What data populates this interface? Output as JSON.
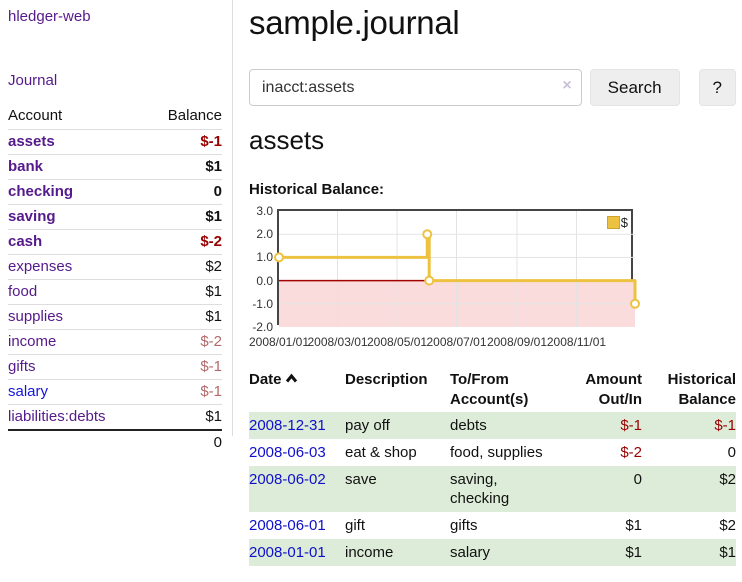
{
  "sidebar": {
    "app_title": "hledger-web",
    "journal_link": "Journal",
    "accounts": {
      "header_account": "Account",
      "header_balance": "Balance",
      "rows": [
        {
          "name": "assets",
          "balance": "$-1"
        },
        {
          "name": "bank",
          "balance": "$1"
        },
        {
          "name": "checking",
          "balance": "0"
        },
        {
          "name": "saving",
          "balance": "$1"
        },
        {
          "name": "cash",
          "balance": "$-2"
        },
        {
          "name": "expenses",
          "balance": "$2"
        },
        {
          "name": "food",
          "balance": "$1"
        },
        {
          "name": "supplies",
          "balance": "$1"
        },
        {
          "name": "income",
          "balance": "$-2"
        },
        {
          "name": "gifts",
          "balance": "$-1"
        },
        {
          "name": "salary",
          "balance": "$-1"
        },
        {
          "name": "liabilities:debts",
          "balance": "$1"
        }
      ],
      "total": "0"
    }
  },
  "main": {
    "title": "sample.journal",
    "search": {
      "value": "inacct:assets",
      "clear": "×",
      "button": "Search",
      "help": "?"
    },
    "heading": "assets",
    "chart_label": "Historical Balance:"
  },
  "chart_data": {
    "type": "line",
    "title": "Historical Balance",
    "step": true,
    "series": [
      {
        "name": "$",
        "color": "#edc240",
        "points": [
          {
            "x": "2008-01-01",
            "y": 1
          },
          {
            "x": "2008-06-01",
            "y": 2
          },
          {
            "x": "2008-06-03",
            "y": 0
          },
          {
            "x": "2008-12-31",
            "y": -1
          }
        ]
      }
    ],
    "ylim": [
      -2,
      3
    ],
    "yticks": [
      3,
      2,
      1,
      0,
      -1,
      -2
    ],
    "xticks": [
      {
        "date": "2008-01-01",
        "label": "2008/01/01"
      },
      {
        "date": "2008-03-01",
        "label": "2008/03/01"
      },
      {
        "date": "2008-05-01",
        "label": "2008/05/01"
      },
      {
        "date": "2008-07-01",
        "label": "2008/07/01"
      },
      {
        "date": "2008-09-01",
        "label": "2008/09/01"
      },
      {
        "date": "2008-11-01",
        "label": "2008/11/01"
      }
    ],
    "xrange": [
      "2008-01-01",
      "2008-12-31"
    ],
    "grid": true,
    "legend": {
      "label": "$",
      "position": "top-right"
    },
    "negative_fill": "#fbdcdc",
    "zero_line_color": "#a40000",
    "grid_color": "#e3e3e3"
  },
  "transactions": {
    "headers": {
      "date": "Date",
      "description": "Description",
      "accounts": "To/From Account(s)",
      "amount": "Amount Out/In",
      "balance": "Historical Balance"
    },
    "rows": [
      {
        "date": "2008-12-31",
        "description": "pay off",
        "accounts": "debts",
        "amount": "$-1",
        "balance": "$-1"
      },
      {
        "date": "2008-06-03",
        "description": "eat & shop",
        "accounts": "food, supplies",
        "amount": "$-2",
        "balance": "0"
      },
      {
        "date": "2008-06-02",
        "description": "save",
        "accounts": "saving, checking",
        "amount": "0",
        "balance": "$2"
      },
      {
        "date": "2008-06-01",
        "description": "gift",
        "accounts": "gifts",
        "amount": "$1",
        "balance": "$2"
      },
      {
        "date": "2008-01-01",
        "description": "income",
        "accounts": "salary",
        "amount": "$1",
        "balance": "$1"
      }
    ]
  }
}
